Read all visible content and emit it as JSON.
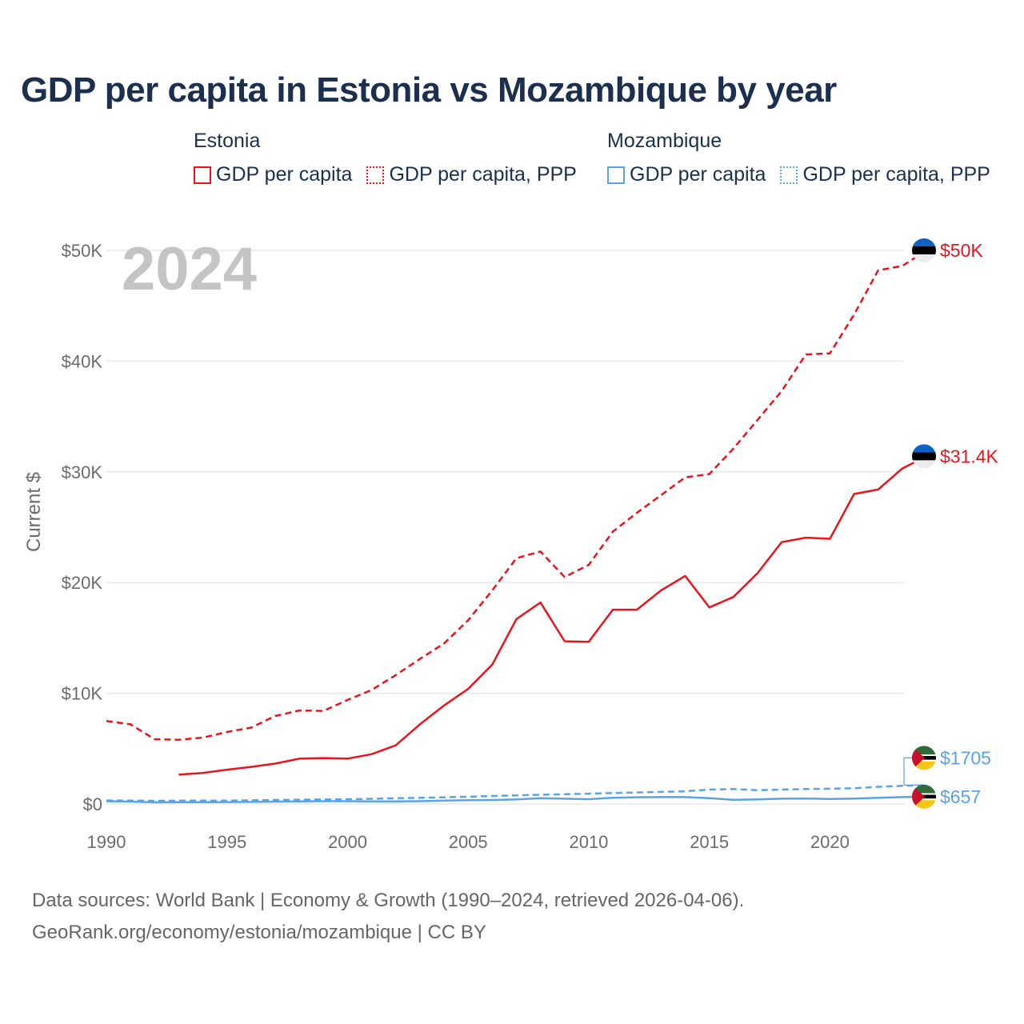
{
  "title": "GDP per capita in Estonia vs Mozambique by year",
  "legend": {
    "groups": [
      {
        "name": "Estonia",
        "color": "#e8141c",
        "items": [
          {
            "label": "GDP per capita",
            "style": "solid"
          },
          {
            "label": "GDP per capita, PPP",
            "style": "dotted"
          }
        ]
      },
      {
        "name": "Mozambique",
        "color": "#5aa3e6",
        "items": [
          {
            "label": "GDP per capita",
            "style": "solid"
          },
          {
            "label": "GDP per capita, PPP",
            "style": "dotted"
          }
        ]
      }
    ]
  },
  "chart_data": {
    "type": "line",
    "title": "GDP per capita in Estonia vs Mozambique by year",
    "year_label": "2024",
    "xlabel": "",
    "ylabel": "Current $",
    "xlim": [
      1990,
      2024
    ],
    "ylim": [
      0,
      50000
    ],
    "x_ticks": [
      "1990",
      "1995",
      "2000",
      "2005",
      "2010",
      "2015",
      "2020"
    ],
    "y_ticks": [
      {
        "value": 0,
        "label": "$0"
      },
      {
        "value": 10000,
        "label": "$10K"
      },
      {
        "value": 20000,
        "label": "$20K"
      },
      {
        "value": 30000,
        "label": "$30K"
      },
      {
        "value": 40000,
        "label": "$40K"
      },
      {
        "value": 50000,
        "label": "$50K"
      }
    ],
    "grid": true,
    "series": [
      {
        "name": "Estonia GDP per capita, PPP",
        "country": "Estonia",
        "color": "#e8141c",
        "dash": "dashed",
        "end_label": "$50K",
        "x": [
          1990,
          1991,
          1992,
          1993,
          1994,
          1995,
          1996,
          1997,
          1998,
          1999,
          2000,
          2001,
          2002,
          2003,
          2004,
          2005,
          2006,
          2007,
          2008,
          2009,
          2010,
          2011,
          2012,
          2013,
          2014,
          2015,
          2016,
          2017,
          2018,
          2019,
          2020,
          2021,
          2022,
          2023,
          2024
        ],
        "values": [
          7500,
          7200,
          5850,
          5800,
          6000,
          6500,
          6900,
          7950,
          8450,
          8400,
          9400,
          10300,
          11650,
          13100,
          14500,
          16600,
          19300,
          22200,
          22800,
          20500,
          21600,
          24600,
          26300,
          27900,
          29500,
          29800,
          32100,
          34700,
          37300,
          40600,
          40700,
          44200,
          48200,
          48600,
          50000
        ]
      },
      {
        "name": "Estonia GDP per capita",
        "country": "Estonia",
        "color": "#e8141c",
        "dash": "solid",
        "end_label": "$31.4K",
        "x": [
          1993,
          1994,
          1995,
          1996,
          1997,
          1998,
          1999,
          2000,
          2001,
          2002,
          2003,
          2004,
          2005,
          2006,
          2007,
          2008,
          2009,
          2010,
          2011,
          2012,
          2013,
          2014,
          2015,
          2016,
          2017,
          2018,
          2019,
          2020,
          2021,
          2022,
          2023,
          2024
        ],
        "values": [
          2650,
          2800,
          3100,
          3350,
          3650,
          4100,
          4150,
          4100,
          4500,
          5300,
          7200,
          8900,
          10400,
          12600,
          16700,
          18200,
          14700,
          14650,
          17550,
          17550,
          19300,
          20600,
          17750,
          18700,
          20850,
          23650,
          24050,
          23950,
          28000,
          28400,
          30300,
          31400
        ]
      },
      {
        "name": "Mozambique GDP per capita, PPP",
        "country": "Mozambique",
        "color": "#5aa3e6",
        "dash": "dashed",
        "end_label": "$1705",
        "x": [
          1990,
          1991,
          1992,
          1993,
          1994,
          1995,
          1996,
          1997,
          1998,
          1999,
          2000,
          2001,
          2002,
          2003,
          2004,
          2005,
          2006,
          2007,
          2008,
          2009,
          2010,
          2011,
          2012,
          2013,
          2014,
          2015,
          2016,
          2017,
          2018,
          2019,
          2020,
          2021,
          2022,
          2023,
          2024
        ],
        "values": [
          320,
          310,
          290,
          300,
          300,
          310,
          330,
          360,
          390,
          410,
          430,
          470,
          520,
          560,
          610,
          660,
          720,
          780,
          840,
          880,
          930,
          990,
          1040,
          1090,
          1150,
          1300,
          1350,
          1250,
          1300,
          1350,
          1380,
          1420,
          1550,
          1640,
          1705
        ]
      },
      {
        "name": "Mozambique GDP per capita",
        "country": "Mozambique",
        "color": "#5aa3e6",
        "dash": "solid",
        "end_label": "$657",
        "x": [
          1990,
          1991,
          1992,
          1993,
          1994,
          1995,
          1996,
          1997,
          1998,
          1999,
          2000,
          2001,
          2002,
          2003,
          2004,
          2005,
          2006,
          2007,
          2008,
          2009,
          2010,
          2011,
          2012,
          2013,
          2014,
          2015,
          2016,
          2017,
          2018,
          2019,
          2020,
          2021,
          2022,
          2023,
          2024
        ],
        "values": [
          250,
          220,
          150,
          160,
          160,
          170,
          190,
          220,
          240,
          250,
          250,
          230,
          230,
          250,
          300,
          340,
          360,
          410,
          520,
          480,
          430,
          560,
          610,
          620,
          620,
          530,
          380,
          420,
          480,
          500,
          450,
          490,
          560,
          620,
          657
        ]
      }
    ]
  },
  "sources": {
    "line1": "Data sources: World Bank | Economy & Growth (1990–2024, retrieved 2026-04-06).",
    "line2": "GeoRank.org/economy/estonia/mozambique | CC BY"
  }
}
